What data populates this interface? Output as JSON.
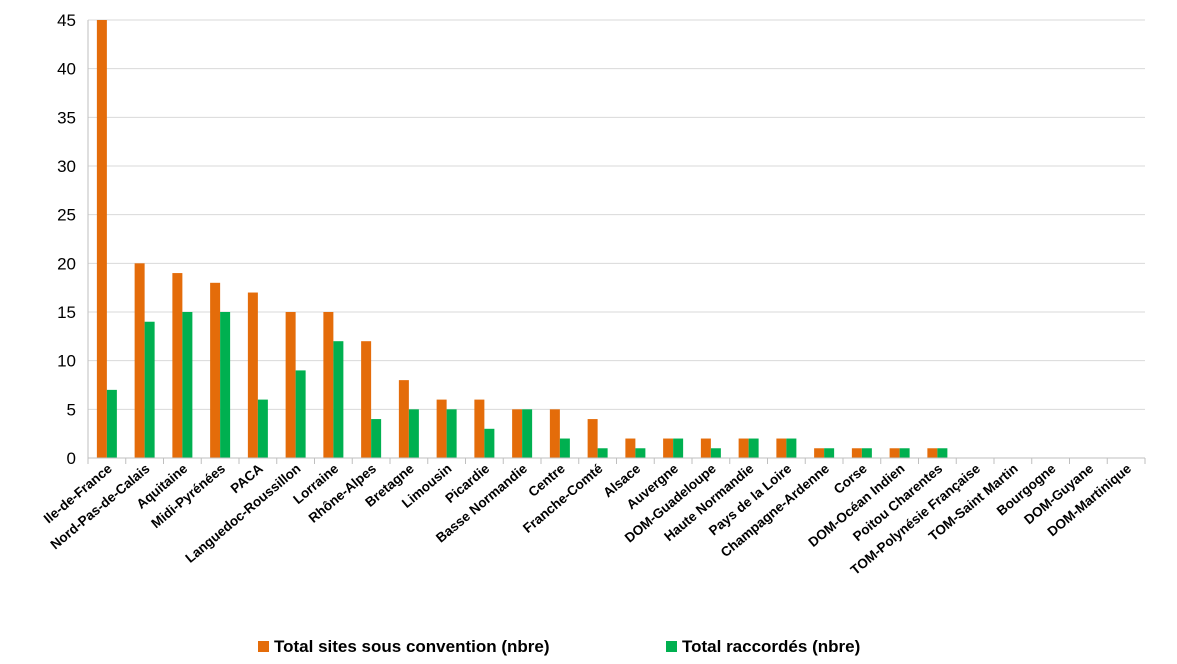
{
  "chart_data": {
    "type": "bar",
    "title": "",
    "xlabel": "",
    "ylabel": "",
    "ylim": [
      0,
      45
    ],
    "yticks": [
      0,
      5,
      10,
      15,
      20,
      25,
      30,
      35,
      40,
      45
    ],
    "grid": true,
    "legend_position": "bottom",
    "categories": [
      "Ile-de-France",
      "Nord-Pas-de-Calais",
      "Aquitaine",
      "Midi-Pyrénées",
      "PACA",
      "Languedoc-Roussillon",
      "Lorraine",
      "Rhône-Alpes",
      "Bretagne",
      "Limousin",
      "Picardie",
      "Basse Normandie",
      "Centre",
      "Franche-Comté",
      "Alsace",
      "Auvergne",
      "DOM-Guadeloupe",
      "Haute Normandie",
      "Pays de la Loire",
      "Champagne-Ardenne",
      "Corse",
      "DOM-Océan Indien",
      "Poitou Charentes",
      "TOM-Polynésie Française",
      "TOM-Saint Martin",
      "Bourgogne",
      "DOM-Guyane",
      "DOM-Martinique"
    ],
    "series": [
      {
        "name": "Total sites sous convention (nbre)",
        "color": "#E46C0A",
        "values": [
          45,
          20,
          19,
          18,
          17,
          15,
          15,
          12,
          8,
          6,
          6,
          5,
          5,
          4,
          2,
          2,
          2,
          2,
          2,
          1,
          1,
          1,
          1,
          0,
          0,
          0,
          0,
          0
        ]
      },
      {
        "name": "Total raccordés (nbre)",
        "color": "#00B050",
        "values": [
          7,
          14,
          15,
          15,
          6,
          9,
          12,
          4,
          5,
          5,
          3,
          5,
          2,
          1,
          1,
          2,
          1,
          2,
          2,
          1,
          1,
          1,
          1,
          0,
          0,
          0,
          0,
          0
        ]
      }
    ]
  }
}
